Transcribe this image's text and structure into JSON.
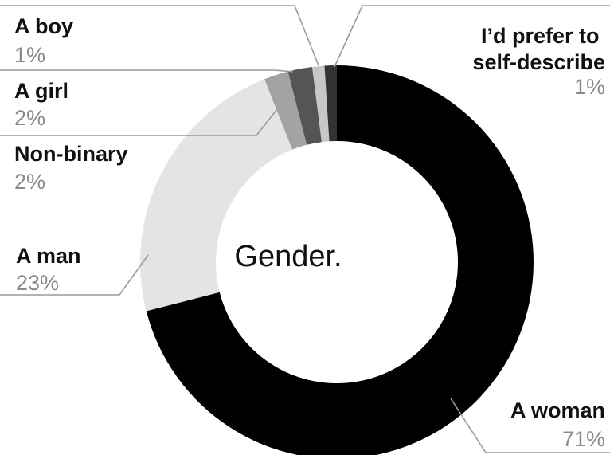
{
  "chart_data": {
    "type": "pie",
    "title": "Gender.",
    "slices": [
      {
        "label": "A woman",
        "value": 71,
        "value_label": "71%",
        "color": "#000000"
      },
      {
        "label": "A man",
        "value": 23,
        "value_label": "23%",
        "color": "#e4e4e4"
      },
      {
        "label": "Non-binary",
        "value": 2,
        "value_label": "2%",
        "color": "#a3a3a3"
      },
      {
        "label": "A girl",
        "value": 2,
        "value_label": "2%",
        "color": "#555555"
      },
      {
        "label": "A boy",
        "value": 1,
        "value_label": "1%",
        "color": "#c7c7c7"
      },
      {
        "label": "I’d prefer to self-describe",
        "value": 1,
        "value_label": "1%",
        "color": "#333333"
      }
    ]
  }
}
